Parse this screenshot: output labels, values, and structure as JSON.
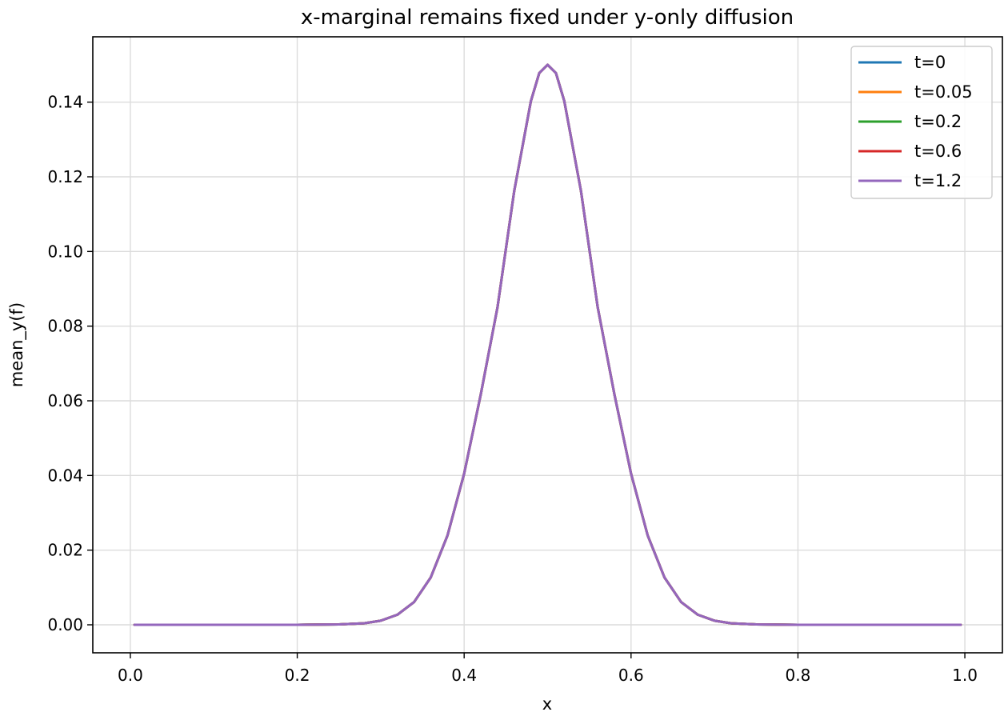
{
  "chart_data": {
    "type": "line",
    "title": "x-marginal remains fixed under y-only diffusion",
    "xlabel": "x",
    "ylabel": "mean_y(f)",
    "xlim": [
      -0.045,
      1.045
    ],
    "ylim": [
      -0.0075,
      0.1575
    ],
    "xticks": [
      0.0,
      0.2,
      0.4,
      0.6,
      0.8,
      1.0
    ],
    "xtick_labels": [
      "0.0",
      "0.2",
      "0.4",
      "0.6",
      "0.8",
      "1.0"
    ],
    "yticks": [
      0.0,
      0.02,
      0.04,
      0.06,
      0.08,
      0.1,
      0.12,
      0.14
    ],
    "ytick_labels": [
      "0.00",
      "0.02",
      "0.04",
      "0.06",
      "0.08",
      "0.10",
      "0.12",
      "0.14"
    ],
    "grid": true,
    "legend_position": "top-right",
    "x": [
      0.005,
      0.05,
      0.1,
      0.15,
      0.2,
      0.25,
      0.28,
      0.3,
      0.32,
      0.34,
      0.36,
      0.38,
      0.4,
      0.42,
      0.44,
      0.46,
      0.48,
      0.49,
      0.5,
      0.51,
      0.52,
      0.54,
      0.56,
      0.58,
      0.6,
      0.62,
      0.64,
      0.66,
      0.68,
      0.7,
      0.72,
      0.75,
      0.8,
      0.85,
      0.9,
      0.95,
      0.995
    ],
    "series": [
      {
        "name": "t=0",
        "color": "#1f77b4",
        "values": [
          0.0,
          0.0,
          0.0,
          0.0,
          0.0,
          0.0001,
          0.0004,
          0.0011,
          0.0027,
          0.0061,
          0.0127,
          0.0239,
          0.0405,
          0.0618,
          0.0851,
          0.1162,
          0.1403,
          0.1478,
          0.15,
          0.1478,
          0.1403,
          0.1162,
          0.0851,
          0.0618,
          0.0405,
          0.0239,
          0.0127,
          0.0061,
          0.0027,
          0.0011,
          0.0004,
          0.0001,
          0.0,
          0.0,
          0.0,
          0.0,
          0.0
        ]
      },
      {
        "name": "t=0.05",
        "color": "#ff7f0e",
        "values": [
          0.0,
          0.0,
          0.0,
          0.0,
          0.0,
          0.0001,
          0.0004,
          0.0011,
          0.0027,
          0.0061,
          0.0127,
          0.0239,
          0.0405,
          0.0618,
          0.0851,
          0.1162,
          0.1403,
          0.1478,
          0.15,
          0.1478,
          0.1403,
          0.1162,
          0.0851,
          0.0618,
          0.0405,
          0.0239,
          0.0127,
          0.0061,
          0.0027,
          0.0011,
          0.0004,
          0.0001,
          0.0,
          0.0,
          0.0,
          0.0,
          0.0
        ]
      },
      {
        "name": "t=0.2",
        "color": "#2ca02c",
        "values": [
          0.0,
          0.0,
          0.0,
          0.0,
          0.0,
          0.0001,
          0.0004,
          0.0011,
          0.0027,
          0.0061,
          0.0127,
          0.0239,
          0.0405,
          0.0618,
          0.0851,
          0.1162,
          0.1403,
          0.1478,
          0.15,
          0.1478,
          0.1403,
          0.1162,
          0.0851,
          0.0618,
          0.0405,
          0.0239,
          0.0127,
          0.0061,
          0.0027,
          0.0011,
          0.0004,
          0.0001,
          0.0,
          0.0,
          0.0,
          0.0,
          0.0
        ]
      },
      {
        "name": "t=0.6",
        "color": "#d62728",
        "values": [
          0.0,
          0.0,
          0.0,
          0.0,
          0.0,
          0.0001,
          0.0004,
          0.0011,
          0.0027,
          0.0061,
          0.0127,
          0.0239,
          0.0405,
          0.0618,
          0.0851,
          0.1162,
          0.1403,
          0.1478,
          0.15,
          0.1478,
          0.1403,
          0.1162,
          0.0851,
          0.0618,
          0.0405,
          0.0239,
          0.0127,
          0.0061,
          0.0027,
          0.0011,
          0.0004,
          0.0001,
          0.0,
          0.0,
          0.0,
          0.0,
          0.0
        ]
      },
      {
        "name": "t=1.2",
        "color": "#9467bd",
        "values": [
          0.0,
          0.0,
          0.0,
          0.0,
          0.0,
          0.0001,
          0.0004,
          0.0011,
          0.0027,
          0.0061,
          0.0127,
          0.0239,
          0.0405,
          0.0618,
          0.0851,
          0.1162,
          0.1403,
          0.1478,
          0.15,
          0.1478,
          0.1403,
          0.1162,
          0.0851,
          0.0618,
          0.0405,
          0.0239,
          0.0127,
          0.0061,
          0.0027,
          0.0011,
          0.0004,
          0.0001,
          0.0,
          0.0,
          0.0,
          0.0,
          0.0
        ]
      }
    ]
  }
}
